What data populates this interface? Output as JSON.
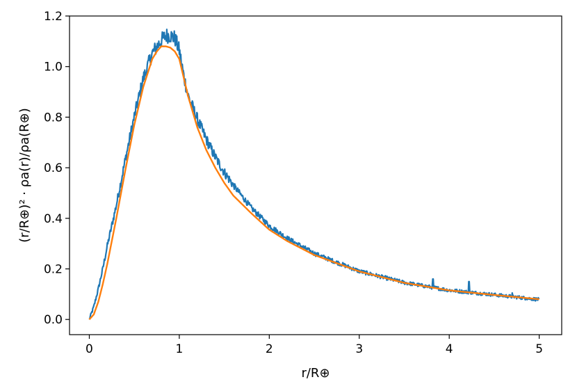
{
  "chart_data": {
    "type": "line",
    "xlabel": "r/R⊕",
    "ylabel": "(r/R⊕)² · ρa(r)/ρa(R⊕)",
    "xlim": [
      -0.22,
      5.25
    ],
    "ylim": [
      -0.06,
      1.2
    ],
    "xticks": [
      0,
      1,
      2,
      3,
      4,
      5
    ],
    "xtick_labels": [
      "0",
      "1",
      "2",
      "3",
      "4",
      "5"
    ],
    "yticks": [
      0.0,
      0.2,
      0.4,
      0.6,
      0.8,
      1.0,
      1.2
    ],
    "ytick_labels": [
      "0.0",
      "0.2",
      "0.4",
      "0.6",
      "0.8",
      "1.0",
      "1.2"
    ],
    "grid": false,
    "series": [
      {
        "color": "#1f77b4",
        "style": "noisy",
        "x": [
          0.0,
          0.05,
          0.1,
          0.15,
          0.2,
          0.3,
          0.4,
          0.5,
          0.6,
          0.7,
          0.8,
          0.85,
          0.9,
          0.95,
          1.0,
          1.05,
          1.1,
          1.2,
          1.3,
          1.4,
          1.5,
          1.6,
          1.8,
          2.0,
          2.2,
          2.5,
          3.0,
          3.5,
          4.0,
          4.5,
          5.0
        ],
        "y": [
          0.0,
          0.05,
          0.12,
          0.2,
          0.29,
          0.45,
          0.63,
          0.8,
          0.95,
          1.05,
          1.1,
          1.12,
          1.12,
          1.11,
          1.06,
          0.96,
          0.88,
          0.79,
          0.71,
          0.64,
          0.58,
          0.53,
          0.44,
          0.37,
          0.32,
          0.26,
          0.19,
          0.145,
          0.115,
          0.097,
          0.078
        ],
        "spikes": [
          {
            "x": 3.82,
            "y": 0.16
          },
          {
            "x": 4.22,
            "y": 0.15
          },
          {
            "x": 4.7,
            "y": 0.105
          }
        ]
      },
      {
        "color": "#ff7f0e",
        "style": "smooth",
        "x": [
          0.0,
          0.05,
          0.1,
          0.15,
          0.2,
          0.3,
          0.4,
          0.5,
          0.6,
          0.7,
          0.75,
          0.8,
          0.85,
          0.9,
          0.95,
          1.0,
          1.1,
          1.2,
          1.3,
          1.4,
          1.5,
          1.6,
          1.8,
          2.0,
          2.2,
          2.5,
          3.0,
          3.5,
          4.0,
          4.5,
          5.0
        ],
        "y": [
          0.0,
          0.02,
          0.07,
          0.14,
          0.22,
          0.4,
          0.59,
          0.77,
          0.92,
          1.03,
          1.06,
          1.08,
          1.08,
          1.075,
          1.06,
          1.03,
          0.88,
          0.76,
          0.67,
          0.6,
          0.54,
          0.49,
          0.42,
          0.355,
          0.31,
          0.255,
          0.19,
          0.145,
          0.115,
          0.097,
          0.08
        ]
      }
    ]
  }
}
